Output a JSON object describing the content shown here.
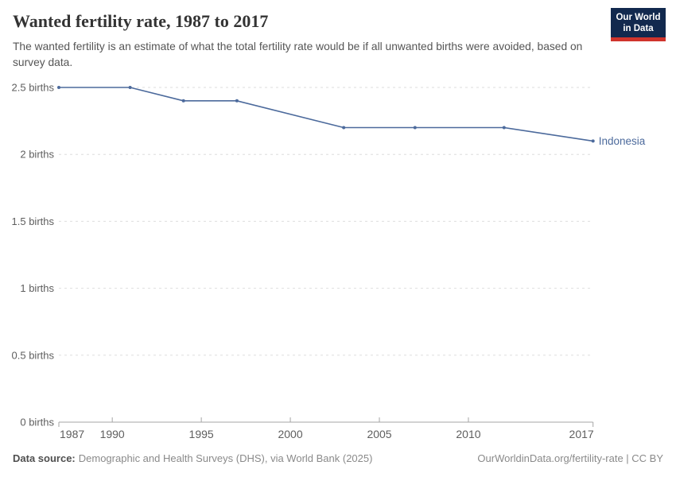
{
  "header": {
    "title": "Wanted fertility rate, 1987 to 2017",
    "subtitle": "The wanted fertility is an estimate of what the total fertility rate would be if all unwanted births were avoided, based on survey data.",
    "logo": {
      "text_line1": "Our World",
      "text_line2": "in Data",
      "background": "#12294e",
      "accent": "#d0342c"
    }
  },
  "chart_data": {
    "type": "line",
    "title": "Wanted fertility rate, 1987 to 2017",
    "xlabel": "",
    "ylabel": "",
    "xlim": [
      1987,
      2017
    ],
    "ylim": [
      0,
      2.5
    ],
    "grid": "horizontal-dashed",
    "legend_position": "end-of-line-label",
    "x_ticks": [
      1987,
      1990,
      1995,
      2000,
      2005,
      2010,
      2017
    ],
    "y_ticks": [
      0,
      0.5,
      1,
      1.5,
      2,
      2.5
    ],
    "y_tick_labels": [
      "0 births",
      "0.5 births",
      "1 births",
      "1.5 births",
      "2 births",
      "2.5 births"
    ],
    "series": [
      {
        "name": "Indonesia",
        "color": "#4c6a9c",
        "x": [
          1987,
          1991,
          1994,
          1997,
          2003,
          2007,
          2012,
          2017
        ],
        "values": [
          2.5,
          2.5,
          2.4,
          2.4,
          2.2,
          2.2,
          2.2,
          2.1
        ]
      }
    ]
  },
  "footer": {
    "datasource_label": "Data source:",
    "datasource_text": "Demographic and Health Surveys (DHS), via World Bank (2025)",
    "attribution": "OurWorldinData.org/fertility-rate | CC BY"
  },
  "colors": {
    "axis": "#a5a5a5",
    "gridline": "#dedede",
    "tick_text": "#5e5e5e"
  }
}
